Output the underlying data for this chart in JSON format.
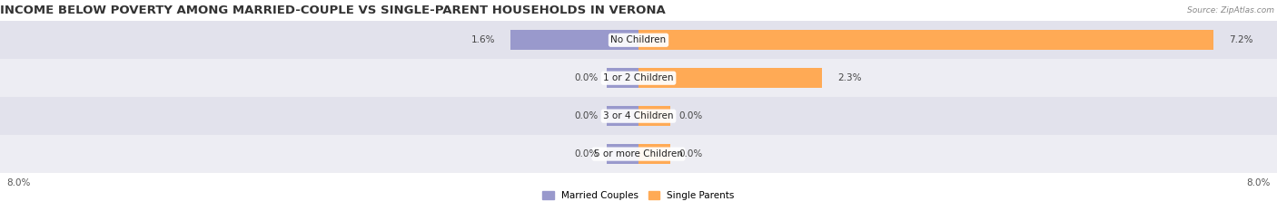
{
  "title": "INCOME BELOW POVERTY AMONG MARRIED-COUPLE VS SINGLE-PARENT HOUSEHOLDS IN VERONA",
  "source": "Source: ZipAtlas.com",
  "categories": [
    "No Children",
    "1 or 2 Children",
    "3 or 4 Children",
    "5 or more Children"
  ],
  "married_values": [
    1.6,
    0.0,
    0.0,
    0.0
  ],
  "single_values": [
    7.2,
    2.3,
    0.0,
    0.0
  ],
  "married_color": "#9999cc",
  "single_color": "#ffaa55",
  "bg_colors": [
    "#e2e2ec",
    "#ededf3"
  ],
  "xlim": [
    -8.0,
    8.0
  ],
  "legend_labels": [
    "Married Couples",
    "Single Parents"
  ],
  "title_fontsize": 9.5,
  "label_fontsize": 7.5,
  "bar_height": 0.52,
  "cat_label_fontsize": 7.5
}
